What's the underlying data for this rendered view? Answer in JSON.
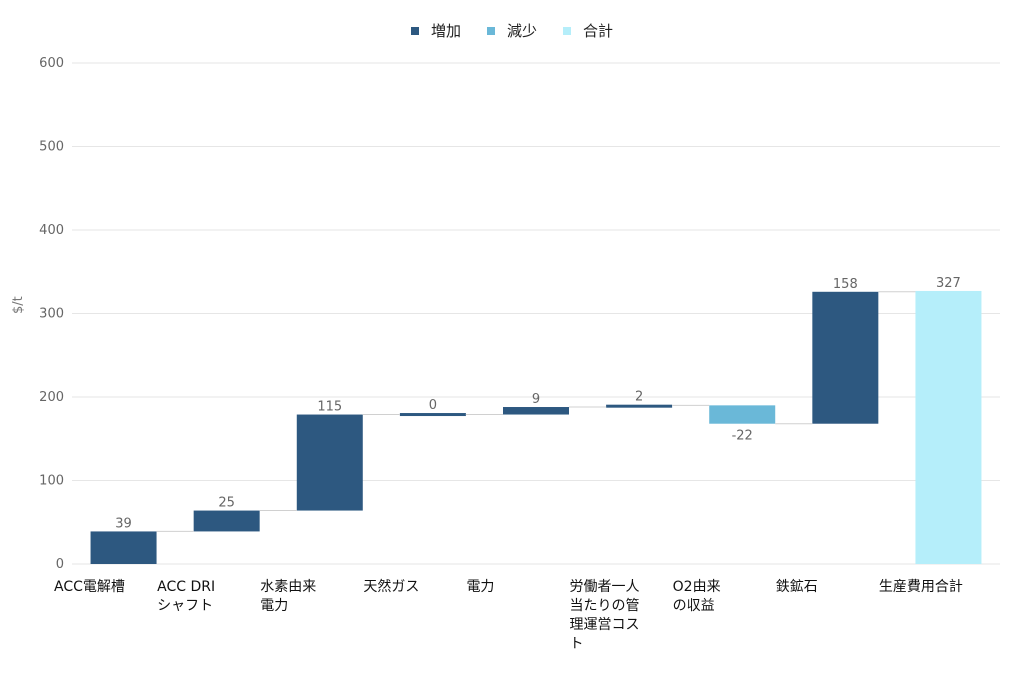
{
  "legend": [
    {
      "label": "増加",
      "color": "#2d5880"
    },
    {
      "label": "減少",
      "color": "#6ab8d8"
    },
    {
      "label": "合計",
      "color": "#b5eefa"
    }
  ],
  "chart_data": {
    "type": "bar",
    "subtype": "waterfall",
    "ylabel": "$/t",
    "ylim": [
      0,
      600
    ],
    "yticks": [
      0,
      100,
      200,
      300,
      400,
      500,
      600
    ],
    "grid": true,
    "legend_position": "top-center",
    "categories": [
      "ACC電解槽",
      "ACC DRI\nシャフト",
      "水素由来\n電力",
      "天然ガス",
      "電力",
      "労働者一人\n当たりの管\n理運営コス\nト",
      "O2由来\nの収益",
      "鉄鉱石",
      "生産費用合計"
    ],
    "values": [
      39,
      25,
      115,
      0,
      9,
      2,
      -22,
      158,
      327
    ],
    "value_labels": [
      "39",
      "25",
      "115",
      "0",
      "9",
      "2",
      "-22",
      "158",
      "327"
    ],
    "bar_types": [
      "increase",
      "increase",
      "increase",
      "increase",
      "increase",
      "increase",
      "decrease",
      "increase",
      "total"
    ]
  }
}
